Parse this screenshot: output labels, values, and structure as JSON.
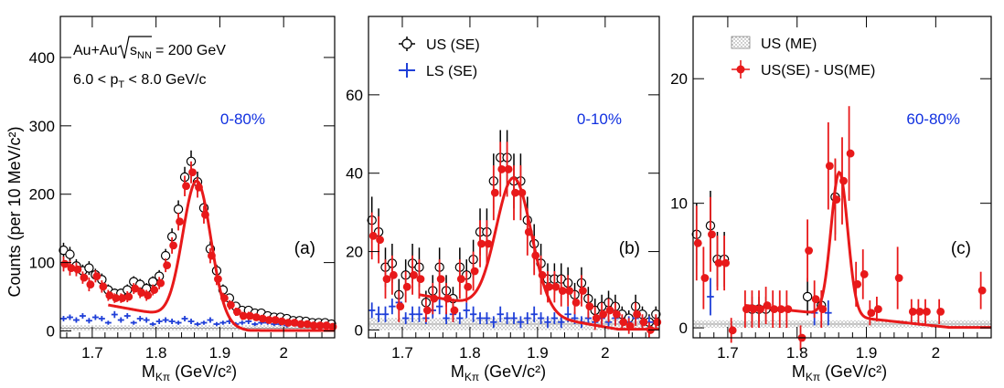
{
  "figure": {
    "ylabel": "Counts (per 10 MeV/c²)",
    "xlabel": "M",
    "xlabel_sub": "Kπ",
    "xlabel_unit": " (GeV/c²)"
  },
  "legend": {
    "us_se": "US (SE)",
    "ls_se": "LS (SE)",
    "us_me": "US (ME)",
    "diff": "US(SE) - US(ME)"
  },
  "annotation": {
    "system": "Au+Au",
    "sqrt_s": "s",
    "sqrt_s_sub": "NN",
    "energy": "= 200 GeV",
    "pt_a": "6.0 < p",
    "pt_sub": "T",
    "pt_b": " < 8.0 GeV/c"
  },
  "colors": {
    "us_se": "#000000",
    "ls_se": "#1f3fd8",
    "diff": "#e8191a",
    "fit": "#e8191a",
    "me": "#9a9a9a",
    "centrality": "#1030e0"
  },
  "chart_data": [
    {
      "type": "scatter",
      "panel_label": "(a)",
      "centrality": "0-80%",
      "xlim": [
        1.65,
        2.08
      ],
      "ylim": [
        -10,
        460
      ],
      "xticks": [
        1.7,
        1.8,
        1.9,
        2
      ],
      "xtick_labels": [
        "1.7",
        "1.8",
        "1.9",
        "2"
      ],
      "yticks": [
        0,
        100,
        200,
        300,
        400
      ],
      "ytick_labels": [
        "0",
        "100",
        "200",
        "300",
        "400"
      ],
      "fit": {
        "A": 205,
        "mu": 1.864,
        "sigma": 0.022,
        "c0": 38,
        "slope": -170,
        "xmin": 1.725,
        "xmax": 2.08
      },
      "series": [
        {
          "name": "US (SE)",
          "x": [
            1.655,
            1.665,
            1.675,
            1.685,
            1.695,
            1.705,
            1.715,
            1.725,
            1.735,
            1.745,
            1.755,
            1.765,
            1.775,
            1.785,
            1.795,
            1.805,
            1.815,
            1.825,
            1.835,
            1.845,
            1.855,
            1.865,
            1.875,
            1.885,
            1.895,
            1.905,
            1.915,
            1.925,
            1.935,
            1.945,
            1.955,
            1.965,
            1.975,
            1.985,
            1.995,
            2.005,
            2.015,
            2.025,
            2.035,
            2.045,
            2.055,
            2.065,
            2.075
          ],
          "y": [
            118,
            112,
            95,
            88,
            92,
            82,
            75,
            60,
            55,
            55,
            60,
            72,
            68,
            62,
            72,
            80,
            110,
            138,
            178,
            225,
            248,
            218,
            180,
            120,
            88,
            60,
            48,
            36,
            30,
            30,
            26,
            26,
            22,
            20,
            20,
            18,
            15,
            15,
            14,
            12,
            12,
            12,
            10
          ],
          "err": [
            11,
            11,
            10,
            9,
            10,
            9,
            9,
            8,
            7,
            7,
            8,
            8,
            8,
            8,
            8,
            9,
            10,
            12,
            13,
            15,
            16,
            15,
            13,
            11,
            9,
            8,
            7,
            6,
            6,
            6,
            5,
            5,
            5,
            5,
            5,
            4,
            4,
            4,
            4,
            3,
            3,
            3,
            3
          ]
        },
        {
          "name": "LS (SE)",
          "x": [
            1.655,
            1.665,
            1.675,
            1.685,
            1.695,
            1.705,
            1.715,
            1.725,
            1.735,
            1.745,
            1.755,
            1.765,
            1.775,
            1.785,
            1.795,
            1.805,
            1.815,
            1.825,
            1.835,
            1.845,
            1.855,
            1.865,
            1.875,
            1.885,
            1.895,
            1.905,
            1.915,
            1.925,
            1.935,
            1.945,
            1.955,
            1.965,
            1.975,
            1.985,
            1.995,
            2.005,
            2.015,
            2.025,
            2.035,
            2.045,
            2.055,
            2.065,
            2.075
          ],
          "y": [
            18,
            20,
            16,
            22,
            15,
            20,
            18,
            12,
            24,
            16,
            22,
            12,
            18,
            16,
            10,
            14,
            16,
            14,
            12,
            18,
            14,
            10,
            12,
            16,
            10,
            12,
            14,
            10,
            12,
            14,
            10,
            12,
            12,
            10,
            10,
            8,
            10,
            8,
            8,
            10,
            6,
            8,
            8
          ],
          "err": [
            4,
            4,
            4,
            4,
            4,
            4,
            4,
            3,
            5,
            4,
            4,
            3,
            4,
            4,
            3,
            4,
            4,
            4,
            3,
            4,
            4,
            3,
            3,
            4,
            3,
            3,
            4,
            3,
            3,
            4,
            3,
            3,
            3,
            3,
            3,
            3,
            3,
            3,
            3,
            3,
            2,
            3,
            3
          ]
        },
        {
          "name": "US(SE) - US(ME)",
          "x": [
            1.655,
            1.665,
            1.675,
            1.685,
            1.695,
            1.705,
            1.715,
            1.725,
            1.735,
            1.745,
            1.755,
            1.765,
            1.775,
            1.785,
            1.795,
            1.805,
            1.815,
            1.825,
            1.835,
            1.845,
            1.855,
            1.865,
            1.875,
            1.885,
            1.895,
            1.905,
            1.915,
            1.925,
            1.935,
            1.945,
            1.955,
            1.965,
            1.975,
            1.985,
            1.995,
            2.005,
            2.015,
            2.025,
            2.035,
            2.045,
            2.055,
            2.065,
            2.075
          ],
          "y": [
            98,
            92,
            90,
            78,
            68,
            80,
            65,
            52,
            48,
            48,
            50,
            62,
            56,
            52,
            60,
            70,
            96,
            125,
            160,
            212,
            232,
            210,
            170,
            110,
            76,
            48,
            38,
            28,
            22,
            22,
            20,
            18,
            16,
            16,
            14,
            12,
            12,
            10,
            10,
            8,
            8,
            8,
            6
          ],
          "err": [
            11,
            11,
            10,
            9,
            10,
            9,
            9,
            8,
            7,
            7,
            8,
            8,
            8,
            8,
            8,
            9,
            10,
            12,
            13,
            15,
            16,
            15,
            13,
            11,
            9,
            8,
            7,
            6,
            6,
            6,
            5,
            5,
            5,
            5,
            5,
            4,
            4,
            4,
            4,
            3,
            3,
            3,
            3
          ]
        },
        {
          "name": "US (ME)",
          "band": 8
        }
      ]
    },
    {
      "type": "scatter",
      "panel_label": "(b)",
      "centrality": "0-10%",
      "xlim": [
        1.65,
        2.08
      ],
      "ylim": [
        -2,
        80
      ],
      "xticks": [
        1.7,
        1.8,
        1.9,
        2
      ],
      "xtick_labels": [
        "1.7",
        "1.8",
        "1.9",
        "2"
      ],
      "yticks": [
        0,
        20,
        40,
        60
      ],
      "ytick_labels": [
        "0",
        "20",
        "40",
        "60"
      ],
      "fit": {
        "A": 34,
        "mu": 1.865,
        "sigma": 0.026,
        "c0": 9,
        "slope": -30,
        "xmin": 1.725,
        "xmax": 2.08
      },
      "series": [
        {
          "name": "US (SE)",
          "x": [
            1.655,
            1.665,
            1.675,
            1.685,
            1.695,
            1.705,
            1.715,
            1.725,
            1.735,
            1.745,
            1.755,
            1.765,
            1.775,
            1.785,
            1.795,
            1.805,
            1.815,
            1.825,
            1.835,
            1.845,
            1.855,
            1.865,
            1.875,
            1.885,
            1.895,
            1.905,
            1.915,
            1.925,
            1.935,
            1.945,
            1.955,
            1.965,
            1.975,
            1.985,
            1.995,
            2.005,
            2.015,
            2.025,
            2.035,
            2.045,
            2.055,
            2.065,
            2.075
          ],
          "y": [
            28,
            25,
            16,
            17,
            9,
            14,
            17,
            16,
            7,
            10,
            16,
            10,
            8,
            16,
            14,
            18,
            25,
            25,
            38,
            44,
            44,
            38,
            38,
            28,
            22,
            17,
            13,
            13,
            13,
            12,
            9,
            12,
            8,
            5,
            6,
            7,
            6,
            4,
            3,
            6,
            4,
            2,
            4
          ],
          "err": [
            6,
            6,
            5,
            5,
            4,
            4,
            5,
            5,
            3,
            4,
            5,
            4,
            3,
            5,
            4,
            5,
            6,
            6,
            7,
            7,
            7,
            7,
            7,
            6,
            5,
            5,
            4,
            4,
            4,
            4,
            3,
            4,
            3,
            3,
            3,
            3,
            3,
            2,
            2,
            3,
            2,
            2,
            2
          ]
        },
        {
          "name": "LS (SE)",
          "x": [
            1.655,
            1.665,
            1.675,
            1.685,
            1.695,
            1.705,
            1.715,
            1.725,
            1.735,
            1.745,
            1.755,
            1.765,
            1.775,
            1.785,
            1.795,
            1.805,
            1.815,
            1.825,
            1.835,
            1.845,
            1.855,
            1.865,
            1.875,
            1.885,
            1.895,
            1.905,
            1.915,
            1.925,
            1.935,
            1.945,
            1.955,
            1.965,
            1.975,
            1.985,
            1.995,
            2.005,
            2.015,
            2.025,
            2.035,
            2.045,
            2.055,
            2.065,
            2.075
          ],
          "y": [
            5,
            4,
            4,
            6,
            7,
            3,
            4,
            4,
            3,
            5,
            6,
            3,
            4,
            3,
            5,
            4,
            3,
            3,
            2,
            4,
            3,
            3,
            2,
            3,
            4,
            3,
            2,
            3,
            2,
            4,
            3,
            2,
            3,
            2,
            3,
            2,
            3,
            2,
            2,
            3,
            2,
            2,
            2
          ],
          "err": [
            2,
            2,
            2,
            2,
            2,
            1.5,
            2,
            2,
            1.5,
            2,
            2,
            1.5,
            2,
            1.5,
            2,
            2,
            1.5,
            1.5,
            1.5,
            2,
            1.5,
            1.5,
            1.5,
            1.5,
            2,
            1.5,
            1.5,
            1.5,
            1.5,
            2,
            1.5,
            1.5,
            1.5,
            1.5,
            1.5,
            1.5,
            1.5,
            1.5,
            1.5,
            1.5,
            1.5,
            1.5,
            1.5
          ]
        },
        {
          "name": "US(SE) - US(ME)",
          "x": [
            1.655,
            1.665,
            1.675,
            1.685,
            1.695,
            1.705,
            1.715,
            1.725,
            1.735,
            1.745,
            1.755,
            1.765,
            1.775,
            1.785,
            1.795,
            1.805,
            1.815,
            1.825,
            1.835,
            1.845,
            1.855,
            1.865,
            1.875,
            1.885,
            1.895,
            1.905,
            1.915,
            1.925,
            1.935,
            1.945,
            1.955,
            1.965,
            1.975,
            1.985,
            1.995,
            2.005,
            2.015,
            2.025,
            2.035,
            2.045,
            2.055,
            2.065,
            2.075
          ],
          "y": [
            24,
            23,
            13,
            14,
            6,
            11,
            14,
            13,
            5,
            8,
            13,
            8,
            5,
            13,
            11,
            15,
            22,
            22,
            35,
            41,
            41,
            35,
            35,
            25,
            19,
            14,
            11,
            11,
            10,
            10,
            7,
            10,
            6,
            3,
            4,
            5,
            4,
            2,
            1,
            4,
            2,
            0,
            2
          ],
          "err": [
            6,
            6,
            5,
            5,
            4,
            4,
            5,
            5,
            3,
            4,
            5,
            4,
            3,
            5,
            4,
            5,
            6,
            6,
            7,
            7,
            7,
            7,
            7,
            6,
            5,
            5,
            4,
            4,
            4,
            4,
            3,
            4,
            3,
            3,
            3,
            3,
            3,
            2,
            2,
            3,
            2,
            2,
            2
          ]
        },
        {
          "name": "US (ME)",
          "band": 3
        }
      ]
    },
    {
      "type": "scatter",
      "panel_label": "(c)",
      "centrality": "60-80%",
      "xlim": [
        1.65,
        2.08
      ],
      "ylim": [
        -0.8,
        25
      ],
      "xticks": [
        1.7,
        1.8,
        1.9,
        2
      ],
      "xtick_labels": [
        "1.7",
        "1.8",
        "1.9",
        "2"
      ],
      "yticks": [
        0,
        10,
        20
      ],
      "ytick_labels": [
        "0",
        "10",
        "20"
      ],
      "fit": {
        "A": 11.5,
        "mu": 1.861,
        "sigma": 0.012,
        "c0": 1.8,
        "slope": -6,
        "xmin": 1.725,
        "xmax": 2.08
      },
      "series": [
        {
          "name": "US (SE)",
          "x": [
            1.655,
            1.675,
            1.685,
            1.695,
            1.735,
            1.745,
            1.755,
            1.815,
            1.835,
            1.855
          ],
          "y": [
            7.5,
            8.2,
            5.5,
            5.5,
            1.5,
            1.5,
            1.5,
            2.5,
            1.8,
            10.5
          ],
          "err": [
            2.5,
            2.8,
            2.2,
            2.2,
            1,
            1,
            1,
            1.5,
            1.2,
            3
          ]
        },
        {
          "name": "LS (SE)",
          "x": [
            1.675,
            1.825,
            1.845
          ],
          "y": [
            2.5,
            1.2,
            1.2
          ],
          "err": [
            1.5,
            1,
            1
          ]
        },
        {
          "name": "US(SE) - US(ME)",
          "x": [
            1.655,
            1.665,
            1.675,
            1.685,
            1.695,
            1.705,
            1.725,
            1.735,
            1.745,
            1.755,
            1.765,
            1.775,
            1.785,
            1.805,
            1.815,
            1.825,
            1.835,
            1.845,
            1.855,
            1.865,
            1.875,
            1.885,
            1.895,
            1.905,
            1.915,
            1.945,
            1.965,
            1.975,
            1.985,
            2.005,
            2.065
          ],
          "y": [
            6.8,
            4,
            7.5,
            5.2,
            5.2,
            -0.2,
            1.5,
            1.5,
            1.5,
            1.8,
            1.5,
            1.5,
            1.5,
            -0.8,
            6.2,
            2.3,
            1.5,
            13,
            10.3,
            11.8,
            14,
            3.5,
            4.3,
            1.2,
            1.5,
            4,
            1.3,
            1.3,
            1.3,
            1.3,
            3
          ],
          "err": [
            3,
            2.5,
            3,
            2.2,
            2.2,
            1,
            1.5,
            1.5,
            1.5,
            1.5,
            1.5,
            1.5,
            1.5,
            1,
            2.5,
            1.5,
            1.5,
            3.5,
            3.3,
            3.5,
            3.8,
            1.8,
            2,
            1,
            1,
            2.5,
            1,
            1,
            1,
            1,
            1.5
          ]
        },
        {
          "name": "US (ME)",
          "band": 0.6
        }
      ]
    }
  ]
}
